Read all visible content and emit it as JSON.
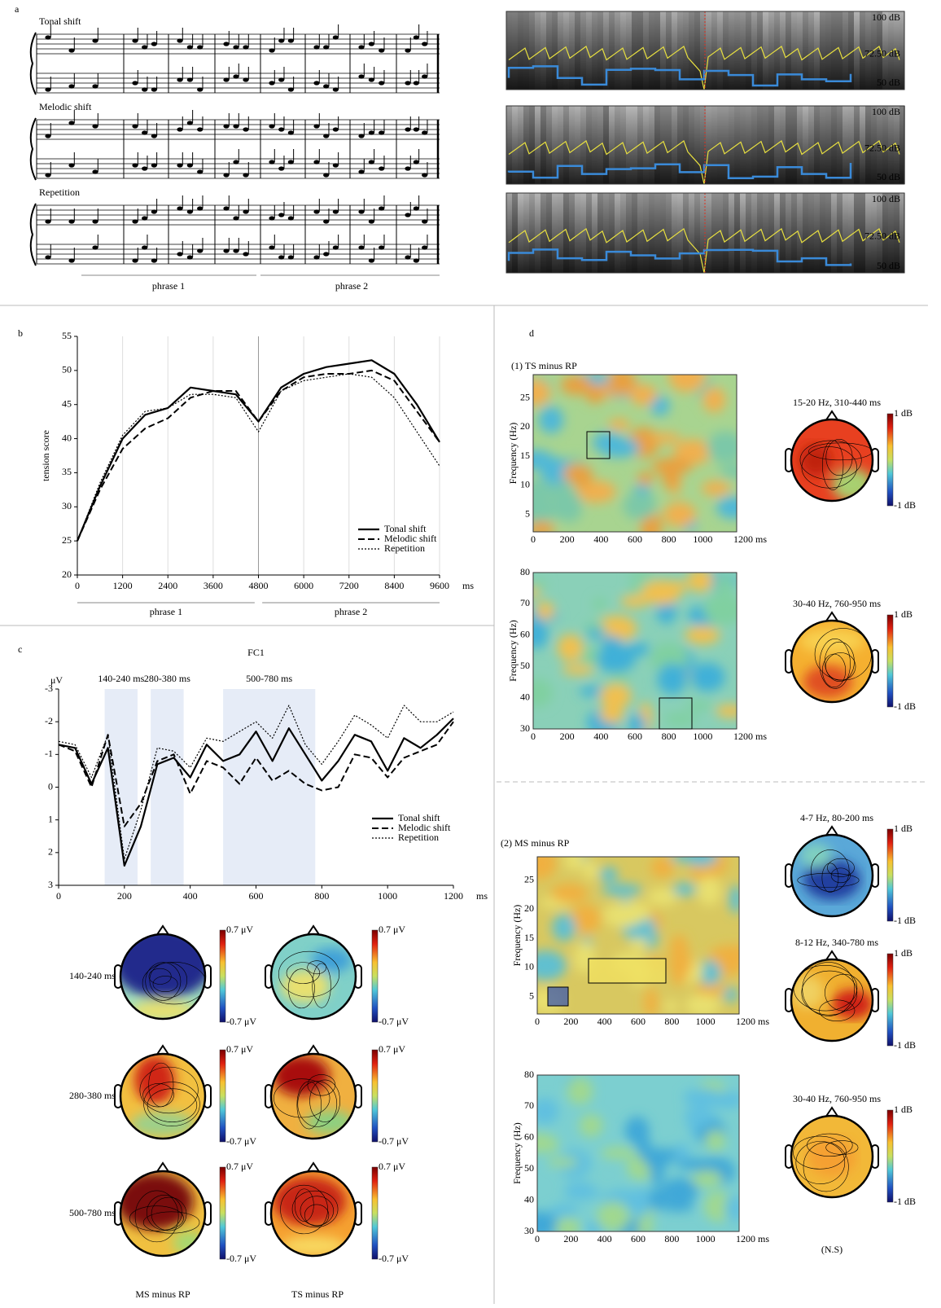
{
  "panel_labels": [
    "a",
    "b",
    "c",
    "d"
  ],
  "panel_a": {
    "rows": [
      "Tonal shift",
      "Melodic shift",
      "Repetition"
    ],
    "phrases": [
      "phrase 1",
      "phrase 2"
    ],
    "db_labels": [
      "100 dB",
      "72.50 dB",
      "50 dB"
    ]
  },
  "chart_data": [
    {
      "type": "line",
      "x": [
        0,
        600,
        1200,
        1800,
        2400,
        3000,
        3600,
        4200,
        4800,
        5400,
        6000,
        6600,
        7200,
        7800,
        8400,
        9000,
        9600
      ],
      "series": [
        {
          "name": "Tonal shift",
          "color": "#000000",
          "line_style": "solid",
          "values": [
            25,
            33,
            40,
            43.5,
            44.5,
            47.5,
            47,
            46.5,
            42.5,
            47.5,
            49.5,
            50.5,
            51,
            51.5,
            49.5,
            45,
            39.5
          ]
        },
        {
          "name": "Melodic shift",
          "color": "#000000",
          "line_style": "dashed",
          "values": [
            25,
            32.5,
            38.5,
            41.5,
            43,
            46,
            47,
            47,
            42.5,
            47,
            49,
            49.5,
            49.5,
            50,
            48.5,
            44,
            39.5
          ]
        },
        {
          "name": "Repetition",
          "color": "#000000",
          "line_style": "dotted",
          "values": [
            25,
            33.5,
            40.5,
            44,
            44.5,
            46.5,
            46.5,
            46,
            41,
            47,
            48.5,
            49,
            49.5,
            49,
            46,
            41,
            36
          ]
        }
      ],
      "xlim": [
        0,
        9600
      ],
      "xticks": [
        0,
        1200,
        2400,
        3600,
        4800,
        6000,
        7200,
        8400,
        9600
      ],
      "x_unit": "ms",
      "ylim": [
        20,
        55
      ],
      "yticks": [
        20,
        25,
        30,
        35,
        40,
        45,
        50,
        55
      ],
      "y_label": "tension score",
      "grid": "x",
      "legend": "lower right",
      "annotations": [
        "phrase 1",
        "phrase 2"
      ]
    },
    {
      "type": "line",
      "title": "FC1",
      "x": [
        0,
        50,
        100,
        150,
        200,
        250,
        300,
        350,
        400,
        450,
        500,
        550,
        600,
        650,
        700,
        750,
        800,
        850,
        900,
        950,
        1000,
        1050,
        1100,
        1150,
        1200
      ],
      "series": [
        {
          "name": "Tonal shift",
          "color": "#000000",
          "line_style": "solid",
          "values": [
            -1.3,
            -1.2,
            -0.1,
            -1.2,
            2.4,
            1.2,
            -0.7,
            -0.9,
            -0.3,
            -1.3,
            -0.8,
            -1.0,
            -1.7,
            -0.8,
            -1.8,
            -1.0,
            -0.2,
            -0.8,
            -1.6,
            -1.4,
            -0.5,
            -1.5,
            -1.2,
            -1.6,
            -2.1
          ]
        },
        {
          "name": "Melodic shift",
          "color": "#000000",
          "line_style": "dashed",
          "values": [
            -1.3,
            -1.1,
            0.0,
            -1.6,
            1.2,
            0.5,
            -0.8,
            -1.0,
            0.2,
            -0.8,
            -0.6,
            -0.1,
            -0.9,
            -0.2,
            -0.5,
            -0.1,
            0.1,
            0.0,
            -1.0,
            -0.9,
            -0.3,
            -0.9,
            -1.1,
            -1.3,
            -2.0
          ]
        },
        {
          "name": "Repetition",
          "color": "#000000",
          "line_style": "dotted",
          "values": [
            -1.4,
            -1.3,
            -0.3,
            -1.6,
            2.2,
            0.7,
            -1.2,
            -1.1,
            -0.6,
            -1.5,
            -1.4,
            -1.7,
            -2.0,
            -1.5,
            -2.5,
            -1.3,
            -0.7,
            -1.4,
            -2.2,
            -1.9,
            -1.5,
            -2.5,
            -2.0,
            -2.0,
            -2.3
          ]
        }
      ],
      "xlim": [
        0,
        1200
      ],
      "xticks": [
        0,
        200,
        400,
        600,
        800,
        1000,
        1200
      ],
      "x_unit": "ms",
      "ylim": [
        3,
        -3
      ],
      "yticks": [
        -3,
        -2,
        -1,
        0,
        1,
        2,
        3
      ],
      "y_label": "μV",
      "legend": "lower right",
      "windows": [
        {
          "start": 140,
          "end": 240,
          "label": "140-240 ms"
        },
        {
          "start": 280,
          "end": 380,
          "label": "280-380 ms"
        },
        {
          "start": 500,
          "end": 780,
          "label": "500-780 ms"
        }
      ]
    }
  ],
  "panel_c": {
    "rows": [
      "140-240 ms",
      "280-380 ms",
      "500-780 ms"
    ],
    "columns": [
      "MS minus RP",
      "TS minus RP"
    ],
    "scale": [
      "0.7 μV",
      "-0.7 μV"
    ]
  },
  "panel_d": {
    "sections": [
      "(1) TS minus RP",
      "(2) MS minus RP"
    ],
    "y_label": "Frequency (Hz)",
    "low_freq_ticks": [
      "5",
      "10",
      "15",
      "20",
      "25"
    ],
    "high_freq_ticks": [
      "30",
      "40",
      "50",
      "60",
      "70",
      "80"
    ],
    "time_ticks": [
      "0",
      "200",
      "400",
      "600",
      "800",
      "1000",
      "1200 ms"
    ],
    "topomaps": [
      "15-20 Hz, 310-440 ms",
      "30-40 Hz, 760-950 ms",
      "4-7 Hz, 80-200 ms",
      "8-12 Hz, 340-780 ms",
      "30-40 Hz, 760-950 ms"
    ],
    "ns_note": "(N.S)",
    "colorbar": [
      "1 dB",
      "-1 dB"
    ]
  }
}
